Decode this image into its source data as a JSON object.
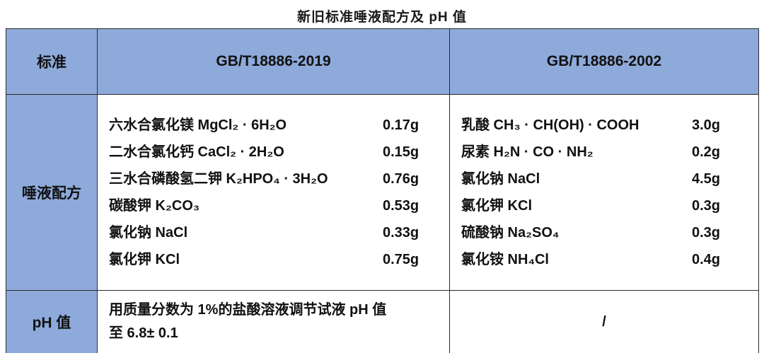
{
  "title": "新旧标准唾液配方及 pH 值",
  "table": {
    "header": {
      "row_label": "标准",
      "col_new": "GB/T18886-2019",
      "col_old": "GB/T18886-2002"
    },
    "formula_row_label": "唾液配方",
    "new_formula": [
      {
        "name": "六水合氯化镁 MgCl₂ · 6H₂O",
        "amount": "0.17g"
      },
      {
        "name": "二水合氯化钙 CaCl₂ · 2H₂O",
        "amount": "0.15g"
      },
      {
        "name": "三水合磷酸氢二钾 K₂HPO₄ · 3H₂O",
        "amount": "0.76g"
      },
      {
        "name": "碳酸钾 K₂CO₃",
        "amount": "0.53g"
      },
      {
        "name": "氯化钠 NaCl",
        "amount": "0.33g"
      },
      {
        "name": "氯化钾 KCl",
        "amount": "0.75g"
      }
    ],
    "old_formula": [
      {
        "name": "乳酸 CH₃ · CH(OH) · COOH",
        "amount": "3.0g"
      },
      {
        "name": "尿素 H₂N · CO · NH₂",
        "amount": "0.2g"
      },
      {
        "name": "氯化钠 NaCl",
        "amount": "4.5g"
      },
      {
        "name": "氯化钾 KCl",
        "amount": "0.3g"
      },
      {
        "name": "硫酸钠 Na₂SO₄",
        "amount": "0.3g"
      },
      {
        "name": "氯化铵 NH₄Cl",
        "amount": "0.4g"
      }
    ],
    "ph_row_label": "pH 值",
    "ph_new_lines": [
      "用质量分数为 1%的盐酸溶液调节试液 pH 值",
      "至 6.8± 0.1"
    ],
    "ph_old": "/"
  },
  "colors": {
    "header_bg": "#8EAADB",
    "border": "#2B2B2B",
    "text": "#111111"
  }
}
